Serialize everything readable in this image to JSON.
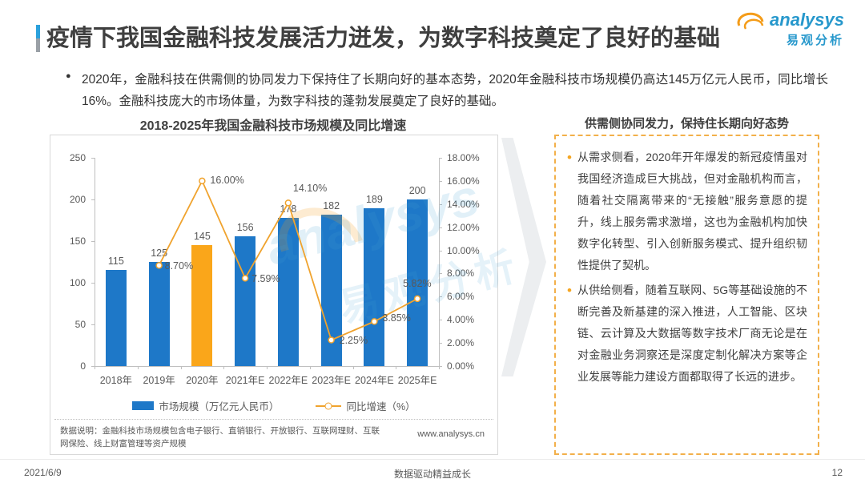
{
  "header": {
    "title": "疫情下我国金融科技发展活力迸发，为数字科技奠定了良好的基础",
    "logo": {
      "brand": "analysys",
      "brand_cn": "易观分析"
    }
  },
  "summary": {
    "bullet": "2020年，金融科技在供需侧的协同发力下保持住了长期向好的基本态势，2020年金融科技市场规模仍高达145万亿元人民币，同比增长16%。金融科技庞大的市场体量，为数字科技的蓬勃发展奠定了良好的基础。"
  },
  "chart_data": {
    "type": "bar+line",
    "title": "2018-2025年我国金融科技市场规模及同比增速",
    "categories": [
      "2018年",
      "2019年",
      "2020年",
      "2021年E",
      "2022年E",
      "2023年E",
      "2024年E",
      "2025年E"
    ],
    "series": [
      {
        "name": "市场规模（万亿元人民币）",
        "type": "bar",
        "values": [
          115,
          125,
          145,
          156,
          178,
          182,
          189,
          200
        ]
      },
      {
        "name": "同比增速（%）",
        "type": "line",
        "values": [
          null,
          8.7,
          16.0,
          7.59,
          14.1,
          2.25,
          3.85,
          5.82
        ],
        "labels": [
          "8.70%",
          "16.00%",
          "7.59%",
          "14.10%",
          "2.25%",
          "3.85%",
          "5.82%"
        ]
      }
    ],
    "left_axis": {
      "min": 0,
      "max": 250,
      "step": 50,
      "ticks": [
        "0",
        "50",
        "100",
        "150",
        "200",
        "250"
      ]
    },
    "right_axis": {
      "min": 0,
      "max": 18,
      "step": 2,
      "ticks": [
        "0.00%",
        "2.00%",
        "4.00%",
        "6.00%",
        "8.00%",
        "10.00%",
        "12.00%",
        "14.00%",
        "16.00%",
        "18.00%"
      ]
    },
    "bar_color": "#1e78c8",
    "highlight_color": "#faa61a",
    "highlight_index": 2,
    "line_color": "#f0a32e",
    "grid": false,
    "legend_position": "bottom",
    "source_note": "数据说明：金融科技市场规模包含电子银行、直销银行、开放银行、互联网理财、互联网保险、线上财富管理等资产规模",
    "website": "www.analysys.cn"
  },
  "insight_panel": {
    "title": "供需侧协同发力，保持住长期向好态势",
    "bullets": [
      "从需求侧看，2020年开年爆发的新冠疫情虽对我国经济造成巨大挑战，但对金融机构而言，随着社交隔离带来的“无接触”服务意愿的提升，线上服务需求激增，这也为金融机构加快数字化转型、引入创新服务模式、提升组织韧性提供了契机。",
      "从供给侧看，随着互联网、5G等基础设施的不断完善及新基建的深入推进，人工智能、区块链、云计算及大数据等数字技术厂商无论是在对金融业务洞察还是深度定制化解决方案等企业发展等能力建设方面都取得了长远的进步。"
    ]
  },
  "footer": {
    "date": "2021/6/9",
    "slogan": "数据驱动精益成长",
    "page": "12"
  }
}
